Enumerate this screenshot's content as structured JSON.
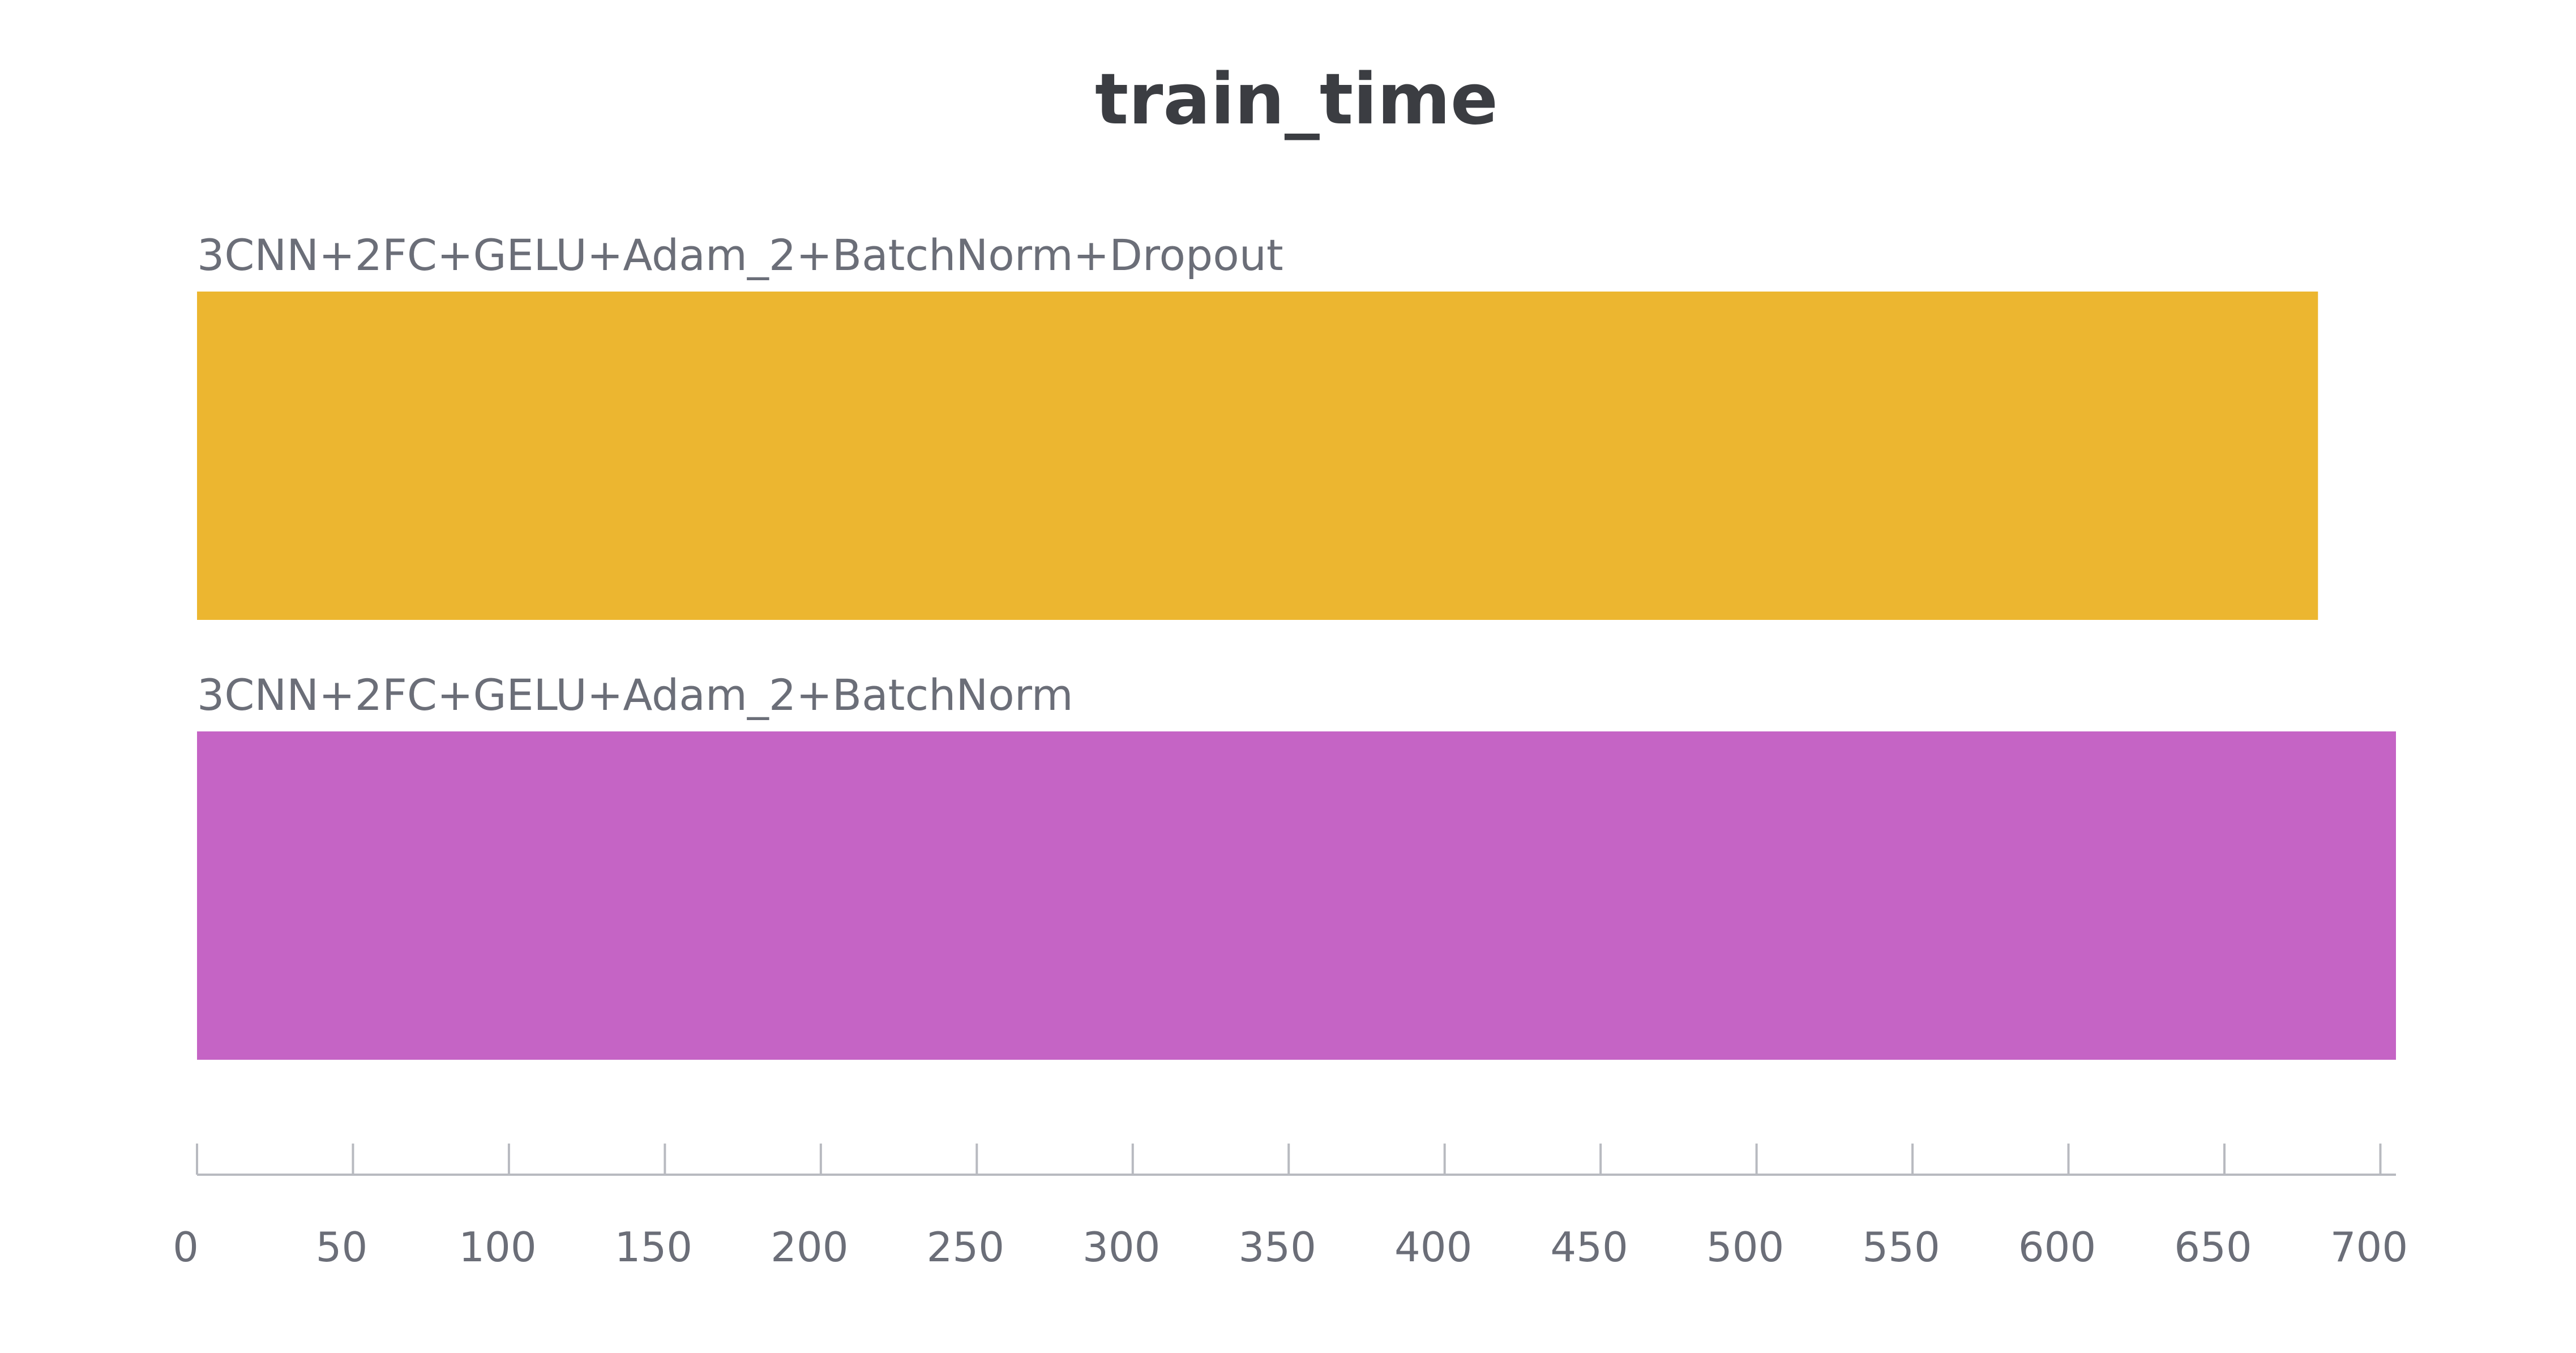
{
  "chart_data": {
    "type": "bar",
    "orientation": "horizontal",
    "title": "train_time",
    "xlabel": "",
    "ylabel": "",
    "categories": [
      "3CNN+2FC+GELU+Adam_2+BatchNorm+Dropout",
      "3CNN+2FC+GELU+Adam_2+BatchNorm"
    ],
    "values": [
      680,
      705
    ],
    "colors": [
      "#ECB630",
      "#C564C5"
    ],
    "xlim": [
      0,
      705
    ],
    "xticks": [
      "0",
      "50",
      "100",
      "150",
      "200",
      "250",
      "300",
      "350",
      "400",
      "450",
      "500",
      "550",
      "600",
      "650",
      "700"
    ],
    "grid": false,
    "legend": "none"
  }
}
